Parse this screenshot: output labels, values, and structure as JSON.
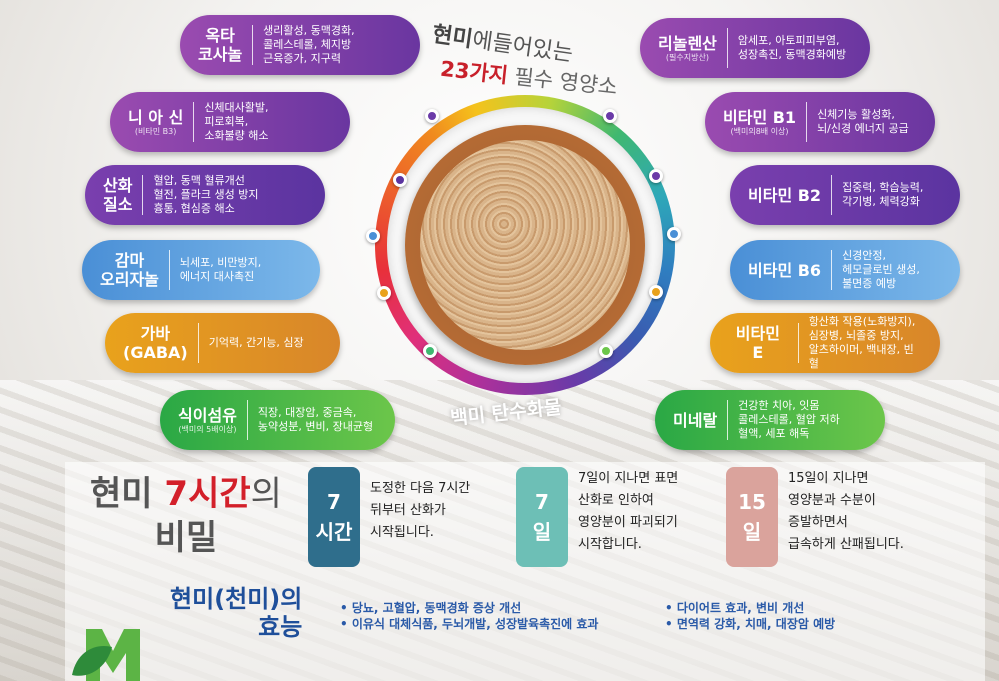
{
  "title": {
    "line1_bold": "현미",
    "line1_rest": "에들어있는",
    "line2_bold": "23가지",
    "line2_rest": " 필수 영양소"
  },
  "arc_text": "백미 탄수화물",
  "left_nutrients": [
    {
      "name": "옥타\n코사놀",
      "sub": "",
      "desc": "생리활성, 동맥경화,\n콜레스테롤, 체지방\n근육증가, 지구력",
      "color": "purple"
    },
    {
      "name": "니 아 신",
      "sub": "(비타민 B3)",
      "desc": "신체대사활발,\n피로회복,\n소화불량 해소",
      "color": "purple"
    },
    {
      "name": "산화\n질소",
      "sub": "",
      "desc": "혈압, 동맥 혈류개선\n혈전, 플라크 생성 방지\n흉통, 협심증 해소",
      "color": "purple"
    },
    {
      "name": "감마\n오리자놀",
      "sub": "",
      "desc": "뇌세포, 비만방지,\n에너지 대사촉진",
      "color": "blue"
    },
    {
      "name": "가바\n(GABA)",
      "sub": "",
      "desc": "기억력, 간기능, 심장",
      "color": "orange"
    },
    {
      "name": "식이섬유",
      "sub": "(백미의 5배이상)",
      "desc": "직장, 대장암, 중금속,\n농약성분, 변비, 장내균형",
      "color": "green"
    }
  ],
  "right_nutrients": [
    {
      "name": "리놀렌산",
      "sub": "(필수지방산)",
      "desc": "암세포, 아토피피부염,\n성장촉진, 동맥경화예방",
      "color": "purple"
    },
    {
      "name": "비타민 B1",
      "sub": "(백미의8배 이상)",
      "desc": "신체기능 활성화,\n뇌/신경 에너지 공급",
      "color": "purple"
    },
    {
      "name": "비타민 B2",
      "sub": "",
      "desc": "집중력, 학습능력,\n각기병, 체력강화",
      "color": "purple"
    },
    {
      "name": "비타민 B6",
      "sub": "",
      "desc": "신경안정,\n헤모글로빈 생성,\n불면증 예방",
      "color": "blue"
    },
    {
      "name": "비타민 E",
      "sub": "",
      "desc": "항산화 작용(노화방지),\n심장병, 뇌졸중 방지,\n알츠하이머, 백내장, 빈혈",
      "color": "orange"
    },
    {
      "name": "미네랄",
      "sub": "",
      "desc": "건강한 치아, 잇몸\n콜레스테롤, 혈압 저하\n혈액, 세포 해독",
      "color": "green"
    }
  ],
  "secret": {
    "a": "현미 ",
    "b": "7시간",
    "c": "의",
    "d": "비밀"
  },
  "timeline": [
    {
      "num": "7",
      "unit": "시간",
      "text": "도정한 다음 7시간\n뒤부터 산화가\n시작됩니다.",
      "color": "#2f6e8c"
    },
    {
      "num": "7",
      "unit": "일",
      "text": "7일이 지나면 표면\n산화로 인하여\n영양분이 파괴되기\n시작합니다.",
      "color": "#6dbfb6"
    },
    {
      "num": "15",
      "unit": "일",
      "text": "15일이 지나면\n영양분과 수분이\n증발하면서\n급속하게 산패됩니다.",
      "color": "#daa39c"
    }
  ],
  "effects": {
    "title1": "현미(천미)의",
    "title2": "효능",
    "col1": "• 당뇨, 고혈압, 동맥경화 증상 개선\n• 이유식 대체식품, 두뇌개발, 성장발육촉진에 효과",
    "col2": "• 다이어트 효과, 변비 개선\n• 면역력 강화, 치매, 대장암 예방"
  },
  "logo": {
    "letter": "M",
    "color": "#5cb445"
  }
}
